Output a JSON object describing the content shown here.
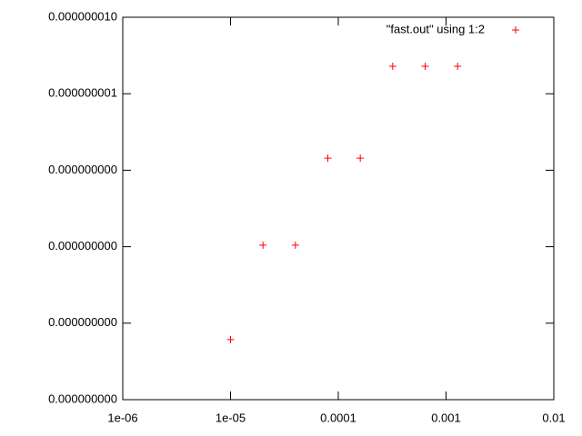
{
  "chart_data": {
    "type": "scatter",
    "x_scale": "log",
    "y_scale": "log",
    "xlim": [
      1e-06,
      0.01
    ],
    "xticks": [
      {
        "value": 1e-06,
        "label": "1e-06"
      },
      {
        "value": 1e-05,
        "label": "1e-05"
      },
      0.0001,
      0.001,
      0.01
    ],
    "ylim": [
      1e-13,
      1e-08
    ],
    "yticks": [
      {
        "value": 1e-13,
        "label": "0.000000000"
      },
      {
        "value": 1e-12,
        "label": "0.000000000"
      },
      {
        "value": 1e-11,
        "label": "0.000000000"
      },
      {
        "value": 1e-10,
        "label": "0.000000000"
      },
      {
        "value": 1e-09,
        "label": "0.000000001"
      },
      {
        "value": 1e-08,
        "label": "0.000000010"
      }
    ],
    "legend": "top-right",
    "series": [
      {
        "name": "\"fast.out\" using 1:2",
        "color": "#ff0000",
        "x": [
          1e-05,
          2e-05,
          4e-05,
          8e-05,
          0.00016,
          0.00032,
          0.00064,
          0.00128
        ],
        "values": [
          6.1e-13,
          1.05e-11,
          1.05e-11,
          1.44e-10,
          1.44e-10,
          2.28e-09,
          2.28e-09,
          2.28e-09
        ]
      }
    ]
  }
}
